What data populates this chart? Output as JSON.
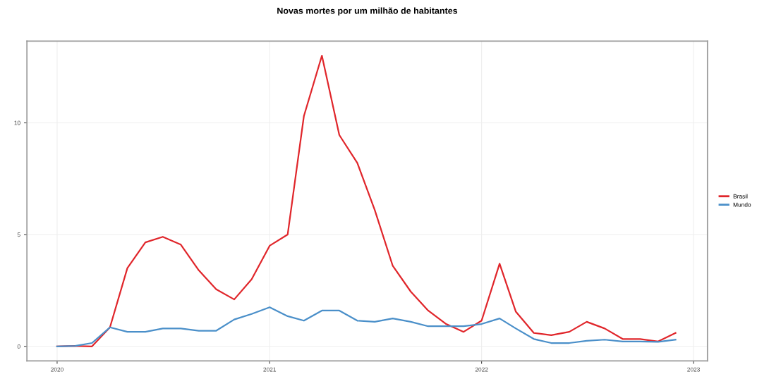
{
  "chart_data": {
    "type": "line",
    "title": "Novas mortes por um milhão de habitantes",
    "x": [
      "2020-01",
      "2020-02",
      "2020-03",
      "2020-04",
      "2020-05",
      "2020-06",
      "2020-07",
      "2020-08",
      "2020-09",
      "2020-10",
      "2020-11",
      "2020-12",
      "2021-01",
      "2021-02",
      "2021-03",
      "2021-04",
      "2021-05",
      "2021-06",
      "2021-07",
      "2021-08",
      "2021-09",
      "2021-10",
      "2021-11",
      "2021-12",
      "2022-01",
      "2022-02",
      "2022-03",
      "2022-04",
      "2022-05",
      "2022-06",
      "2022-07",
      "2022-08",
      "2022-09",
      "2022-10",
      "2022-11",
      "2022-12"
    ],
    "series": [
      {
        "name": "Brasil",
        "color": "#e0262b",
        "values": [
          0,
          0.02,
          0,
          0.85,
          3.5,
          4.65,
          4.9,
          4.55,
          3.4,
          2.55,
          2.1,
          3.0,
          4.5,
          5.0,
          10.3,
          13.0,
          9.45,
          8.2,
          6.1,
          3.6,
          2.45,
          1.6,
          1.0,
          0.65,
          1.15,
          3.7,
          1.55,
          0.6,
          0.5,
          0.65,
          1.1,
          0.8,
          0.33,
          0.33,
          0.22,
          0.6
        ]
      },
      {
        "name": "Mundo",
        "color": "#4a8fc9",
        "values": [
          0,
          0.02,
          0.15,
          0.85,
          0.65,
          0.65,
          0.8,
          0.8,
          0.7,
          0.7,
          1.2,
          1.45,
          1.75,
          1.35,
          1.15,
          1.6,
          1.6,
          1.15,
          1.1,
          1.25,
          1.1,
          0.9,
          0.9,
          0.9,
          1.0,
          1.25,
          0.8,
          0.33,
          0.15,
          0.15,
          0.25,
          0.3,
          0.22,
          0.22,
          0.2,
          0.3
        ]
      }
    ],
    "xlim": [
      "2019-11-10",
      "2023-01-25"
    ],
    "xticks": [
      "2020",
      "2021",
      "2022",
      "2023"
    ],
    "ylim": [
      -0.65,
      13.65
    ],
    "yticks": [
      0,
      5,
      10
    ],
    "grid": true,
    "legend": "right",
    "marker": "none",
    "line_style": "solid"
  }
}
